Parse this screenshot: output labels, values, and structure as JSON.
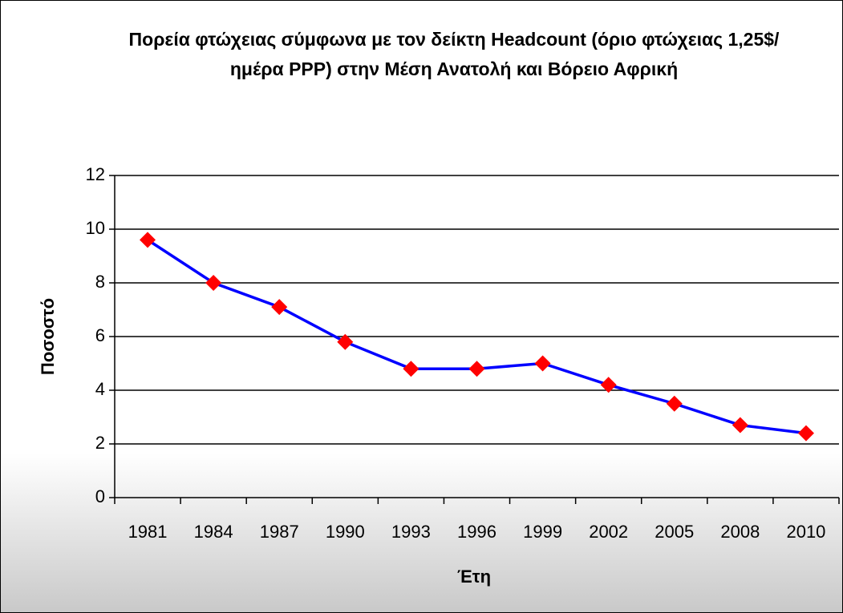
{
  "chart_data": {
    "type": "line",
    "title": "Πορεία φτώχειας σύμφωνα με τον δείκτη Headcount (όριο φτώχειας 1,25$/ημέρα PPP) στην Μέση Ανατολή και Βόρειο Αφρική",
    "x_label": "Έτη",
    "y_label": "Ποσοστό",
    "categories": [
      "1981",
      "1984",
      "1987",
      "1990",
      "1993",
      "1996",
      "1999",
      "2002",
      "2005",
      "2008",
      "2010"
    ],
    "series": [
      {
        "name": "Ποσοστό",
        "color": "#0000ff",
        "marker_color": "#ff0000",
        "values": [
          9.6,
          8.0,
          7.1,
          5.8,
          4.8,
          4.8,
          5.0,
          4.2,
          3.5,
          2.7,
          2.4
        ]
      }
    ],
    "ylim": [
      0,
      12
    ],
    "yticks": [
      0,
      2,
      4,
      6,
      8,
      10,
      12
    ],
    "grid": true
  }
}
